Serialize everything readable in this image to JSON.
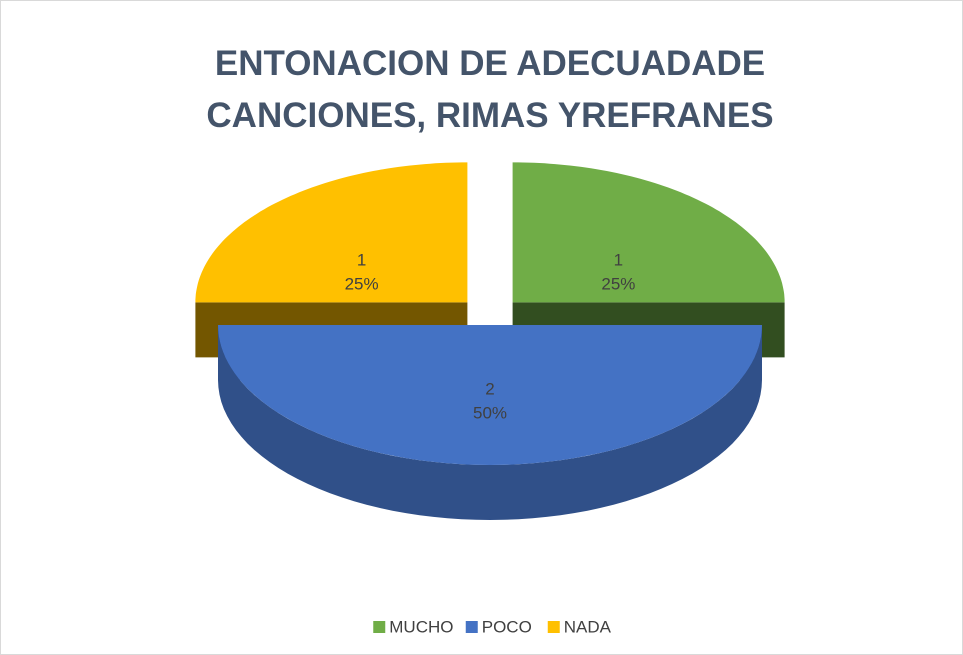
{
  "chart_data": {
    "type": "pie3d",
    "title": "ENTONACION DE ADECUADADE CANCIONES, RIMAS YREFRANES",
    "categories": [
      "MUCHO",
      "POCO",
      "NADA"
    ],
    "values": [
      1,
      2,
      1
    ],
    "percents": [
      25,
      50,
      25
    ],
    "percent_labels": [
      "25%",
      "50%",
      "25%"
    ],
    "colors": [
      "#70ad47",
      "#4472c4",
      "#ffc000"
    ],
    "legend": "bottom"
  }
}
